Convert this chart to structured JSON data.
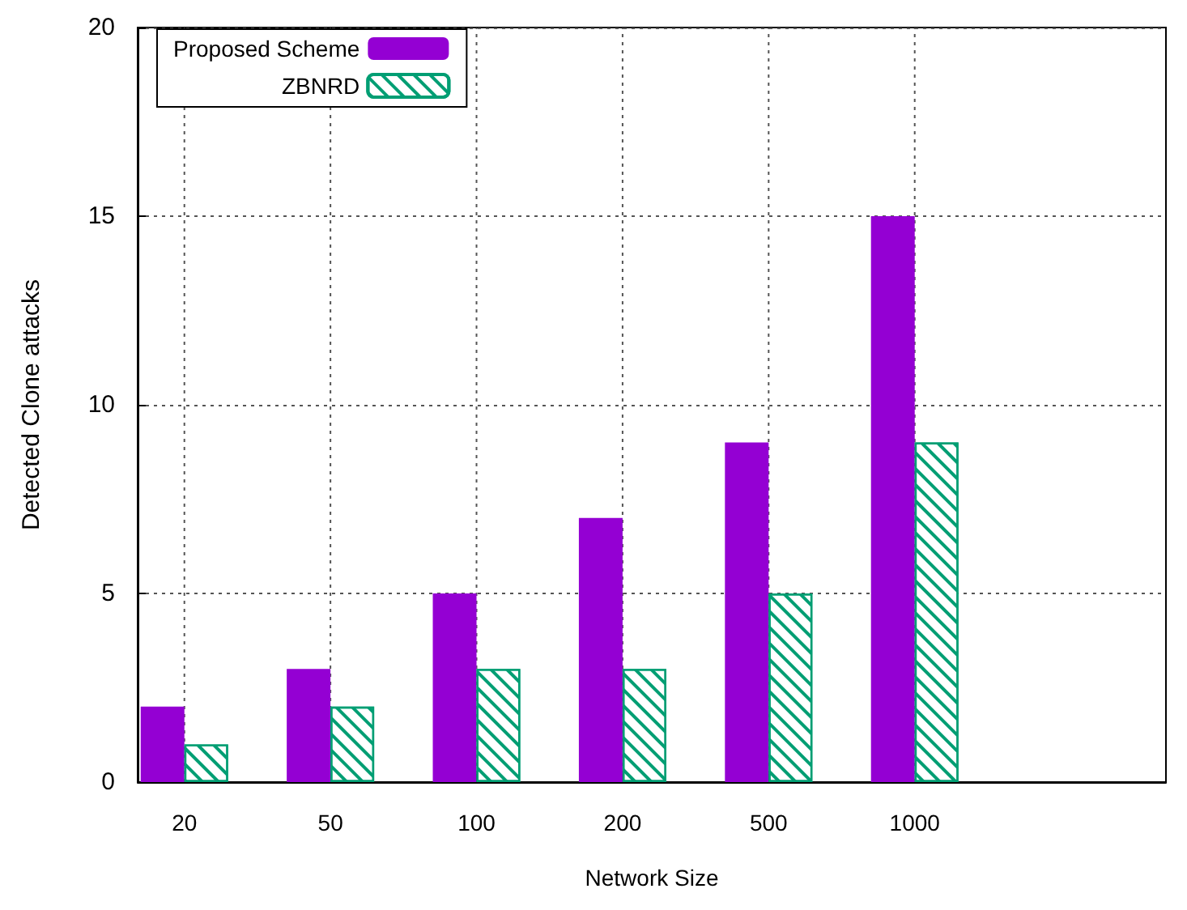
{
  "chart_data": {
    "type": "bar",
    "xlabel": "Network Size",
    "ylabel": "Detected Clone attacks",
    "categories": [
      "20",
      "50",
      "100",
      "200",
      "500",
      "1000"
    ],
    "series": [
      {
        "name": "Proposed Scheme",
        "color": "#9400d3",
        "values": [
          2,
          3,
          5,
          7,
          9,
          15
        ]
      },
      {
        "name": "ZBNRD",
        "color": "#009e73",
        "values": [
          1,
          2,
          3,
          3,
          5,
          9
        ]
      }
    ],
    "ylim": [
      0,
      20
    ],
    "yticks": [
      0,
      5,
      10,
      15,
      20
    ],
    "grid": true,
    "legend": "top left"
  }
}
